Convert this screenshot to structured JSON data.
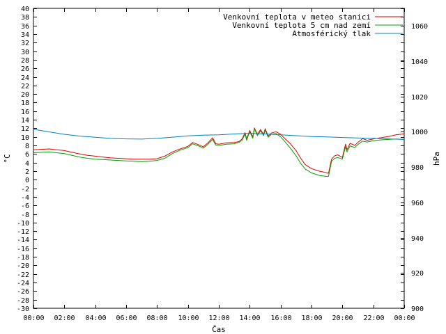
{
  "chart_data": {
    "type": "line",
    "xlabel": "Čas",
    "ylabel": "°C",
    "y2label": "hPa",
    "x_ticks": [
      "00:00",
      "02:00",
      "04:00",
      "06:00",
      "08:00",
      "10:00",
      "12:00",
      "14:00",
      "16:00",
      "18:00",
      "20:00",
      "22:00",
      "00:00"
    ],
    "xlim": [
      0,
      24
    ],
    "ylim": [
      -30,
      40
    ],
    "y_step": 2,
    "y2lim": [
      900,
      1070
    ],
    "y2_ticks": [
      900,
      920,
      940,
      960,
      980,
      1000,
      1020,
      1040,
      1060
    ],
    "grid": false,
    "legend_position": "top-right",
    "series": [
      {
        "name": "Venkovní teplota v meteo stanici",
        "axis": "left",
        "color": "#e00000",
        "points": [
          [
            0,
            7.0
          ],
          [
            0.5,
            7.1
          ],
          [
            1,
            7.2
          ],
          [
            1.5,
            7.0
          ],
          [
            2,
            6.8
          ],
          [
            2.5,
            6.4
          ],
          [
            3,
            6.0
          ],
          [
            3.5,
            5.7
          ],
          [
            4,
            5.5
          ],
          [
            4.5,
            5.3
          ],
          [
            5,
            5.1
          ],
          [
            5.5,
            5.0
          ],
          [
            6,
            4.9
          ],
          [
            6.5,
            4.8
          ],
          [
            7,
            4.8
          ],
          [
            7.5,
            4.8
          ],
          [
            8,
            4.9
          ],
          [
            8.5,
            5.5
          ],
          [
            9,
            6.5
          ],
          [
            9.5,
            7.2
          ],
          [
            10,
            7.8
          ],
          [
            10.3,
            8.7
          ],
          [
            10.6,
            8.3
          ],
          [
            11,
            7.7
          ],
          [
            11.3,
            8.6
          ],
          [
            11.6,
            9.8
          ],
          [
            11.8,
            8.4
          ],
          [
            12,
            8.3
          ],
          [
            12.5,
            8.6
          ],
          [
            13,
            8.7
          ],
          [
            13.3,
            8.9
          ],
          [
            13.5,
            9.5
          ],
          [
            13.7,
            11.0
          ],
          [
            13.8,
            9.5
          ],
          [
            14,
            11.5
          ],
          [
            14.2,
            10.0
          ],
          [
            14.3,
            12.1
          ],
          [
            14.5,
            10.6
          ],
          [
            14.7,
            11.7
          ],
          [
            14.9,
            10.6
          ],
          [
            15,
            11.9
          ],
          [
            15.2,
            10.2
          ],
          [
            15.4,
            10.9
          ],
          [
            15.7,
            11.2
          ],
          [
            16,
            10.6
          ],
          [
            16.3,
            9.5
          ],
          [
            16.6,
            8.5
          ],
          [
            17,
            6.8
          ],
          [
            17.3,
            5.0
          ],
          [
            17.6,
            3.5
          ],
          [
            18,
            2.6
          ],
          [
            18.5,
            2.0
          ],
          [
            18.9,
            1.7
          ],
          [
            19.1,
            1.5
          ],
          [
            19.3,
            4.8
          ],
          [
            19.5,
            5.6
          ],
          [
            19.7,
            5.8
          ],
          [
            20,
            5.2
          ],
          [
            20.2,
            8.3
          ],
          [
            20.3,
            7.0
          ],
          [
            20.5,
            8.5
          ],
          [
            20.8,
            8.0
          ],
          [
            21,
            8.7
          ],
          [
            21.3,
            9.6
          ],
          [
            21.6,
            9.2
          ],
          [
            22,
            9.5
          ],
          [
            22.5,
            9.8
          ],
          [
            23,
            10.1
          ],
          [
            23.5,
            10.5
          ],
          [
            24,
            10.7
          ]
        ]
      },
      {
        "name": "Venkovní teplota 5 cm nad zemí",
        "axis": "left",
        "color": "#00a000",
        "points": [
          [
            0,
            6.3
          ],
          [
            0.5,
            6.4
          ],
          [
            1,
            6.5
          ],
          [
            1.5,
            6.3
          ],
          [
            2,
            6.1
          ],
          [
            2.5,
            5.7
          ],
          [
            3,
            5.3
          ],
          [
            3.5,
            5.0
          ],
          [
            4,
            4.8
          ],
          [
            4.5,
            4.7
          ],
          [
            5,
            4.6
          ],
          [
            5.5,
            4.5
          ],
          [
            6,
            4.4
          ],
          [
            6.5,
            4.3
          ],
          [
            7,
            4.2
          ],
          [
            7.5,
            4.3
          ],
          [
            8,
            4.5
          ],
          [
            8.5,
            5.0
          ],
          [
            9,
            6.1
          ],
          [
            9.5,
            6.9
          ],
          [
            10,
            7.5
          ],
          [
            10.3,
            8.4
          ],
          [
            10.6,
            8.0
          ],
          [
            11,
            7.4
          ],
          [
            11.3,
            8.3
          ],
          [
            11.6,
            9.4
          ],
          [
            11.8,
            8.1
          ],
          [
            12,
            8.0
          ],
          [
            12.5,
            8.3
          ],
          [
            13,
            8.4
          ],
          [
            13.3,
            8.7
          ],
          [
            13.5,
            9.2
          ],
          [
            13.7,
            10.7
          ],
          [
            13.8,
            9.2
          ],
          [
            14,
            11.2
          ],
          [
            14.2,
            9.7
          ],
          [
            14.3,
            11.9
          ],
          [
            14.5,
            10.3
          ],
          [
            14.7,
            11.4
          ],
          [
            14.9,
            10.3
          ],
          [
            15,
            11.6
          ],
          [
            15.2,
            9.9
          ],
          [
            15.4,
            10.6
          ],
          [
            15.7,
            10.8
          ],
          [
            16,
            10.0
          ],
          [
            16.3,
            8.8
          ],
          [
            16.6,
            7.5
          ],
          [
            17,
            5.6
          ],
          [
            17.3,
            3.8
          ],
          [
            17.6,
            2.5
          ],
          [
            18,
            1.6
          ],
          [
            18.5,
            1.0
          ],
          [
            18.9,
            0.8
          ],
          [
            19.1,
            0.8
          ],
          [
            19.3,
            4.3
          ],
          [
            19.5,
            5.0
          ],
          [
            19.7,
            5.2
          ],
          [
            20,
            4.8
          ],
          [
            20.2,
            7.7
          ],
          [
            20.3,
            6.5
          ],
          [
            20.5,
            7.9
          ],
          [
            20.8,
            7.5
          ],
          [
            21,
            8.2
          ],
          [
            21.3,
            9.0
          ],
          [
            21.6,
            8.8
          ],
          [
            22,
            9.1
          ],
          [
            22.5,
            9.3
          ],
          [
            23,
            9.4
          ],
          [
            23.5,
            9.5
          ],
          [
            24,
            9.4
          ]
        ]
      },
      {
        "name": "Atmosférický tlak",
        "axis": "right",
        "color": "#0080c0",
        "points": [
          [
            0,
            1001.5
          ],
          [
            1,
            1000
          ],
          [
            2,
            998.6
          ],
          [
            3,
            997.6
          ],
          [
            4,
            996.9
          ],
          [
            5,
            996.3
          ],
          [
            6,
            996.0
          ],
          [
            7,
            995.9
          ],
          [
            8,
            996.3
          ],
          [
            9,
            997.0
          ],
          [
            10,
            997.7
          ],
          [
            11,
            998.1
          ],
          [
            12,
            998.3
          ],
          [
            13,
            998.8
          ],
          [
            14,
            999.2
          ],
          [
            15,
            998.8
          ],
          [
            16,
            998.3
          ],
          [
            17,
            997.8
          ],
          [
            18,
            997.3
          ],
          [
            19,
            997.1
          ],
          [
            20,
            996.8
          ],
          [
            21,
            996.5
          ],
          [
            22,
            996.3
          ],
          [
            23,
            996.0
          ],
          [
            24,
            995.7
          ]
        ]
      }
    ]
  }
}
